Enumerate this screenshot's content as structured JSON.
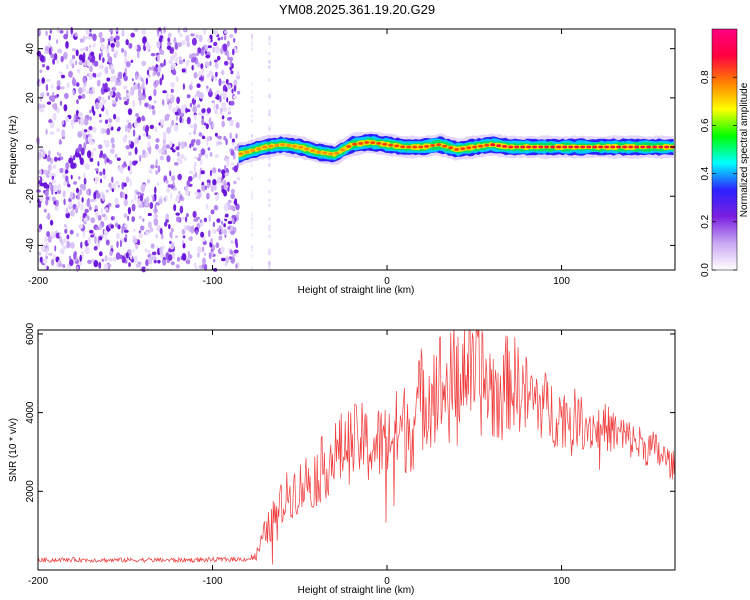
{
  "title": "YM08.2025.361.19.20.G29",
  "chart_data": [
    {
      "type": "heatmap",
      "xlabel": "Height of straight line (km)",
      "ylabel": "Frequency (Hz)",
      "xlim": [
        -200,
        165
      ],
      "ylim": [
        -50,
        48
      ],
      "xticks": [
        -200,
        -100,
        0,
        100
      ],
      "yticks": [
        -40,
        -20,
        0,
        20,
        40
      ],
      "colorbar": {
        "label": "Normalized spectral amplitude",
        "range": [
          0,
          1
        ],
        "ticks": [
          0.0,
          0.2,
          0.4,
          0.6,
          0.8
        ],
        "colors": [
          "#ffffff",
          "#c9a8f2",
          "#7b1fe0",
          "#2b22ff",
          "#00ffff",
          "#00ff00",
          "#ffff00",
          "#ff8000",
          "#ff0040",
          "#ff0080"
        ]
      },
      "noise_region": {
        "x_range": [
          -200,
          -85
        ],
        "description_level": "low random"
      },
      "signal_track": {
        "x": [
          -85,
          -80,
          -70,
          -60,
          -50,
          -40,
          -30,
          -20,
          -10,
          0,
          10,
          20,
          30,
          40,
          50,
          60,
          70,
          80,
          100,
          120,
          140,
          165
        ],
        "frequency": [
          -3,
          -2,
          0,
          1,
          0,
          -2,
          -3,
          1,
          2,
          1,
          0,
          0,
          1,
          -1,
          0,
          1,
          0,
          0,
          0,
          0,
          0,
          0
        ],
        "amplitude": [
          0.55,
          0.6,
          0.65,
          0.7,
          0.7,
          0.65,
          0.6,
          0.75,
          0.8,
          0.8,
          0.75,
          0.8,
          0.8,
          0.75,
          0.8,
          0.85,
          0.9,
          0.95,
          0.95,
          0.95,
          0.95,
          0.95
        ]
      }
    },
    {
      "type": "line",
      "xlabel": "Height of straight line (km)",
      "ylabel": "SNR (10 * v/v)",
      "xlim": [
        -200,
        165
      ],
      "ylim": [
        0,
        6100
      ],
      "xticks": [
        -200,
        -100,
        0,
        100
      ],
      "yticks": [
        2000,
        4000,
        6000
      ],
      "color": "#f03c3c",
      "series": [
        {
          "x": [
            -200,
            -180,
            -160,
            -140,
            -120,
            -100,
            -90,
            -80,
            -75,
            -70,
            -65,
            -60,
            -55,
            -50,
            -45,
            -40,
            -35,
            -30,
            -25,
            -20,
            -15,
            -10,
            -5,
            0,
            5,
            10,
            15,
            20,
            25,
            30,
            35,
            40,
            45,
            50,
            55,
            60,
            65,
            70,
            75,
            80,
            85,
            90,
            95,
            100,
            105,
            110,
            115,
            120,
            125,
            130,
            135,
            140,
            145,
            150,
            155,
            160,
            165
          ],
          "values": [
            250,
            260,
            250,
            255,
            250,
            260,
            270,
            280,
            350,
            900,
            1300,
            1700,
            2000,
            2100,
            2300,
            2400,
            2700,
            2900,
            3100,
            3200,
            3300,
            3100,
            3200,
            3300,
            3500,
            3600,
            3700,
            4400,
            4600,
            4700,
            4500,
            4900,
            5200,
            5100,
            4800,
            4600,
            4500,
            4800,
            4700,
            4400,
            4300,
            4200,
            4000,
            3900,
            3950,
            3800,
            3700,
            3600,
            3650,
            3500,
            3400,
            3300,
            3200,
            3100,
            3000,
            2800,
            2600
          ],
          "noise_amplitude": [
            60,
            60,
            60,
            60,
            60,
            60,
            60,
            60,
            150,
            400,
            500,
            600,
            700,
            700,
            800,
            800,
            900,
            900,
            1000,
            1000,
            1000,
            1000,
            1000,
            1000,
            1100,
            1200,
            1200,
            1400,
            1500,
            1500,
            1500,
            1500,
            1500,
            1500,
            1500,
            1400,
            1300,
            1300,
            1200,
            1100,
            1000,
            900,
            900,
            800,
            800,
            700,
            700,
            600,
            600,
            600,
            600,
            500,
            500,
            500,
            500,
            400,
            400
          ]
        }
      ]
    }
  ]
}
